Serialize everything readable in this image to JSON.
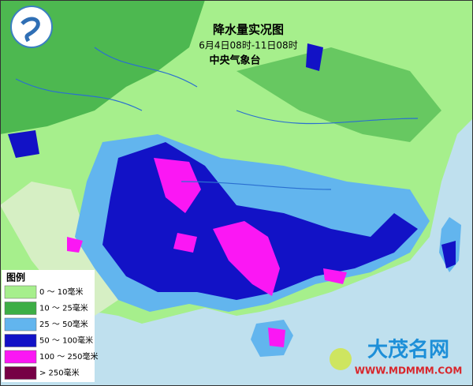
{
  "header": {
    "title": "降水量实况图",
    "period": "6月4日08时-11日08时",
    "source": "中央气象台"
  },
  "legend": {
    "title": "图例",
    "items": [
      {
        "label": "0 ～ 10毫米",
        "color": "#a6ef8c"
      },
      {
        "label": "10 ～ 25毫米",
        "color": "#3dae45"
      },
      {
        "label": "25 ～ 50毫米",
        "color": "#62b5ee"
      },
      {
        "label": "50 ～ 100毫米",
        "color": "#1212c6"
      },
      {
        "label": "100 ～ 250毫米",
        "color": "#fb17f4"
      },
      {
        "label": "> 250毫米",
        "color": "#760045"
      }
    ]
  },
  "watermark": {
    "name": "大茂名网",
    "url": "WWW.MDMMM.COM"
  }
}
